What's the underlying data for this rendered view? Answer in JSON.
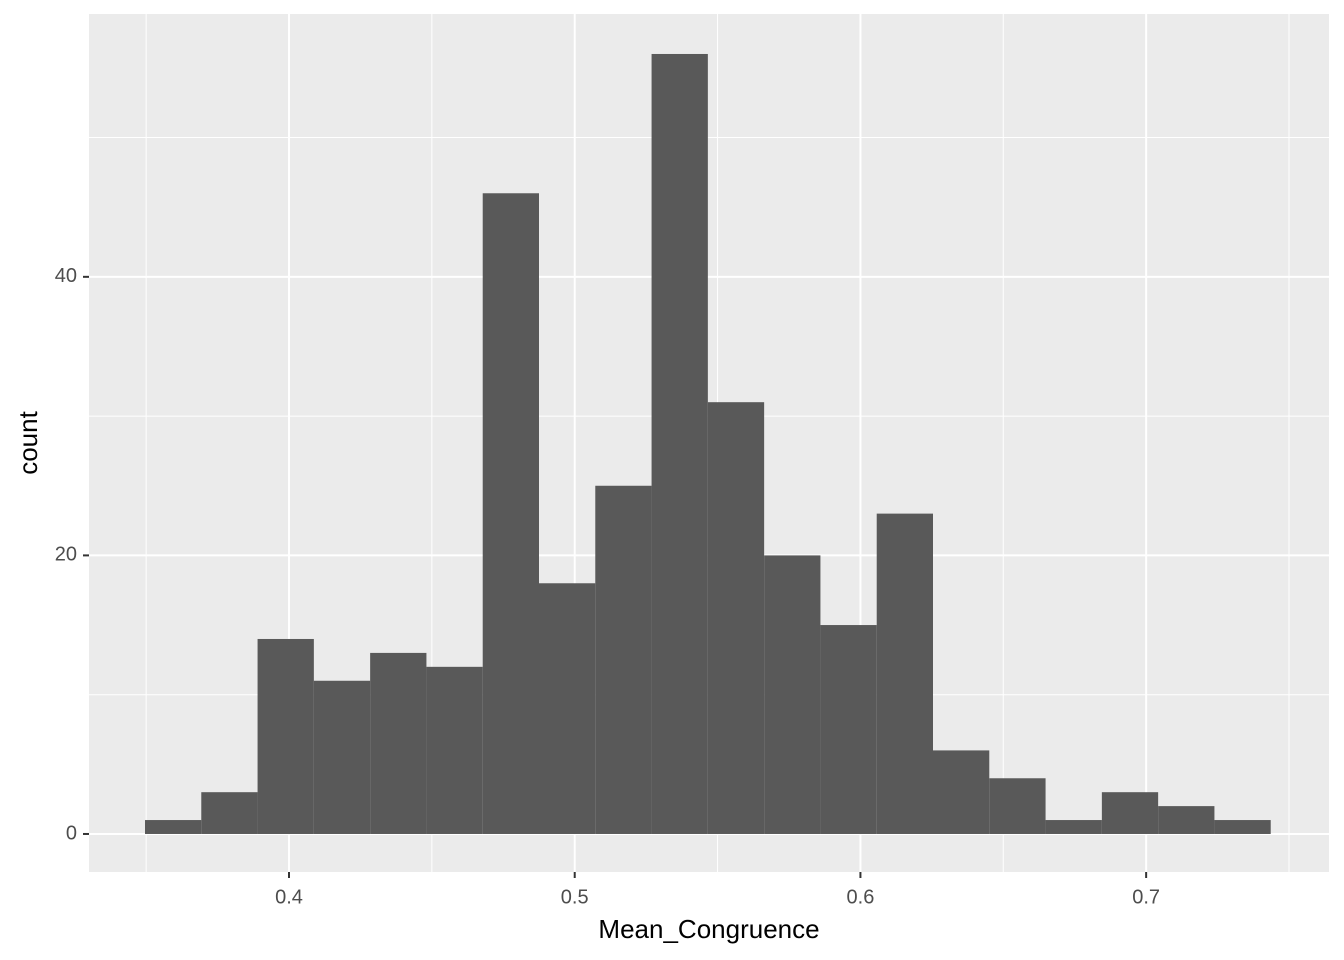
{
  "chart_data": {
    "type": "histogram",
    "x_label": "Mean_Congruence",
    "y_label": "count",
    "bins": [
      0.3496,
      0.3693,
      0.389,
      0.4087,
      0.4284,
      0.4481,
      0.4678,
      0.4875,
      0.5072,
      0.5269,
      0.5466,
      0.5663,
      0.586,
      0.6057,
      0.6254,
      0.6451,
      0.6648,
      0.6845,
      0.7042,
      0.7239,
      0.7436
    ],
    "values": [
      1,
      3,
      14,
      11,
      13,
      12,
      46,
      18,
      25,
      56,
      31,
      20,
      15,
      23,
      6,
      4,
      1,
      3,
      2,
      1
    ],
    "color": "#595959",
    "xlim": [
      0.33,
      0.764
    ],
    "ylim": [
      -2.73,
      58.87
    ],
    "xticks": [
      0.4,
      0.5,
      0.6,
      0.7
    ],
    "yticks": [
      0,
      20,
      40
    ],
    "xminor": [
      0.35,
      0.45,
      0.55,
      0.65,
      0.75
    ],
    "yminor": [
      10,
      30,
      50
    ],
    "grid": true
  }
}
